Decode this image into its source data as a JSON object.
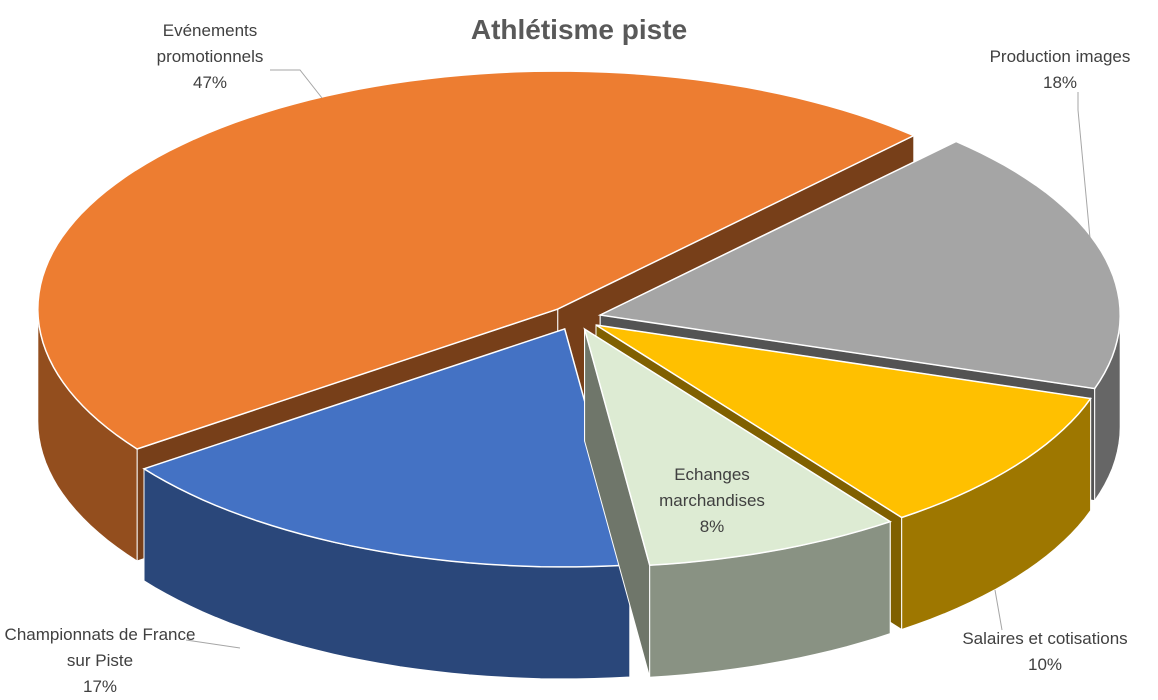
{
  "chart_data": {
    "type": "pie",
    "title": "Athlétisme piste",
    "categories": [
      "Evénements promotionnels",
      "Production images",
      "Salaires et cotisations",
      "Echanges marchandises",
      "Championnats de France sur Piste"
    ],
    "values": [
      47,
      18,
      10,
      8,
      17
    ],
    "value_labels": [
      "47%",
      "18%",
      "10%",
      "8%",
      "17%"
    ],
    "colors": [
      "#ED7D31",
      "#A5A5A5",
      "#FFC000",
      "#DDEBD3",
      "#4472C4"
    ]
  }
}
